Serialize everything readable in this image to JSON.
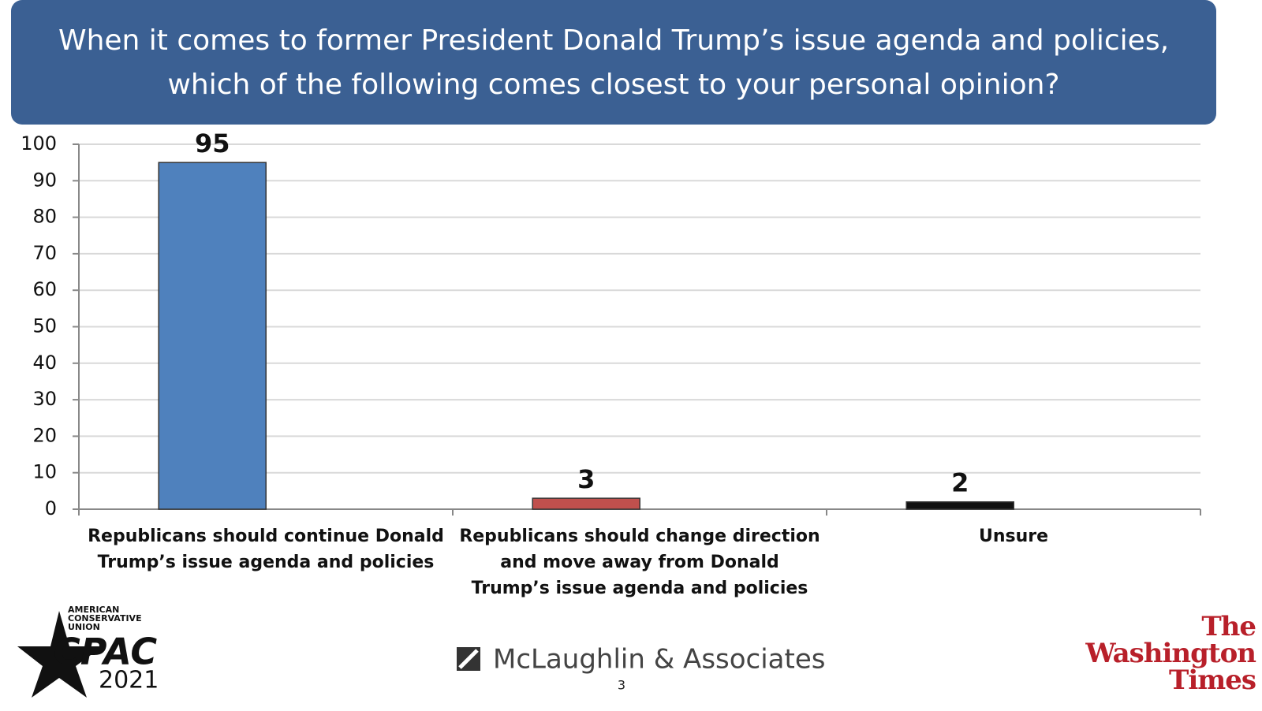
{
  "chart_data": {
    "type": "bar",
    "title": "When it comes to former President Donald Trump’s issue agenda and policies, which of the following comes closest to your personal opinion?",
    "categories": [
      "Republicans should continue Donald Trump’s issue agenda and policies",
      "Republicans should change direction and move away from Donald Trump’s issue agenda and policies",
      "Unsure"
    ],
    "values": [
      95,
      3,
      2
    ],
    "colors": [
      "#4f81bd",
      "#c0504d",
      "#111111"
    ],
    "ylim": [
      0,
      100
    ],
    "yticks": [
      0,
      10,
      20,
      30,
      40,
      50,
      60,
      70,
      80,
      90,
      100
    ],
    "grid": true
  },
  "footer": {
    "cpac_org": "AMERICAN CONSERVATIVE UNION",
    "cpac": "CPAC",
    "cpac_year": "2021",
    "pollster": "McLaughlin & Associates",
    "page_number": "3",
    "newspaper": "The Washington Times"
  }
}
